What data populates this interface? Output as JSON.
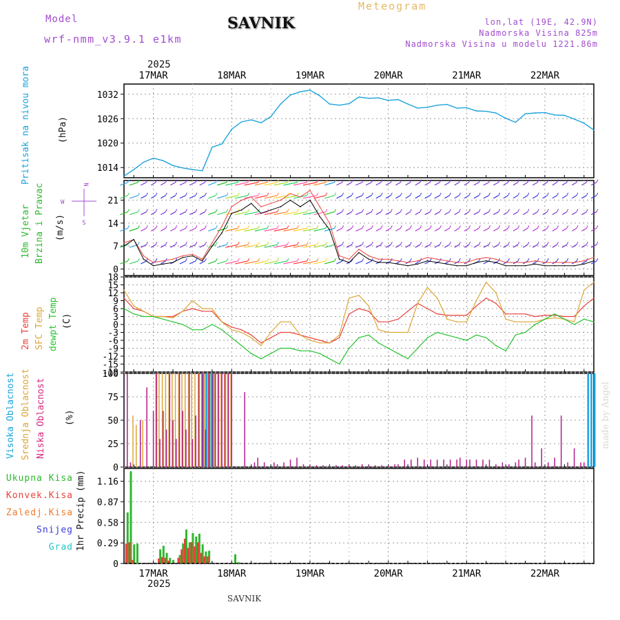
{
  "header": {
    "model_label": "Model",
    "model_name": "wrf-nmm_v3.9.1 e1km",
    "station": "SAVNIK",
    "chart_title": "Meteogram",
    "lonlat": "lon,lat (19E, 42.9N)",
    "elevation": "Nadmorska Visina 825m",
    "model_elevation": "Nadmorska Visina u modelu 1221.86m",
    "year": "2025",
    "footer_station": "SAVNIK",
    "credit": "made by Angel"
  },
  "colors": {
    "pressure": "#1ca3dc",
    "temp2m": "#e8413a",
    "sfc_temp": "#dca535",
    "dewpoint": "#25c12d",
    "high_cloud": "#1ca3dc",
    "mid_cloud": "#dca535",
    "low_cloud": "#b31a8c",
    "total_precip": "#2db82d",
    "conv_precip": "#e8413a",
    "frozen_precip": "#f07a2e",
    "snow": "#3a3ae0",
    "graupel": "#27c4c4",
    "purple_text": "#a24ccf",
    "gold_text": "#e8b765",
    "wind_speed": "#000000",
    "gust": "#e8413a"
  },
  "chart_data": [
    {
      "id": "pressure",
      "type": "line",
      "ylabel_left": "Pritisak na nivou mora",
      "ylabel_right": "(hPa)",
      "yticks": [
        1014,
        1020,
        1026,
        1032
      ],
      "ylim": [
        1011.5,
        1034.5
      ],
      "x_unit": "hours since 2025-03-16 12:00",
      "xlim": [
        3,
        147
      ],
      "x": [
        3,
        6,
        9,
        12,
        15,
        18,
        21,
        24,
        27,
        30,
        33,
        36,
        39,
        42,
        45,
        48,
        51,
        54,
        57,
        60,
        63,
        66,
        69,
        72,
        75,
        78,
        81,
        84,
        87,
        90,
        93,
        96,
        99,
        102,
        105,
        108,
        111,
        114,
        117,
        120,
        123,
        126,
        129,
        132,
        135,
        138,
        141,
        144,
        147
      ],
      "values": [
        1011.9,
        1013.5,
        1015.3,
        1016.3,
        1015.7,
        1014.5,
        1013.9,
        1013.5,
        1013.2,
        1019.0,
        1019.8,
        1023.4,
        1025.2,
        1025.7,
        1025.0,
        1026.5,
        1029.6,
        1031.8,
        1032.6,
        1033.0,
        1031.6,
        1029.6,
        1029.3,
        1029.7,
        1031.3,
        1031.0,
        1031.1,
        1030.5,
        1030.7,
        1029.6,
        1028.6,
        1028.8,
        1029.3,
        1029.5,
        1028.6,
        1028.7,
        1027.9,
        1027.8,
        1027.4,
        1026.1,
        1025.1,
        1027.2,
        1027.4,
        1027.5,
        1026.9,
        1026.8,
        1025.9,
        1024.9,
        1023.2
      ]
    },
    {
      "id": "wind",
      "type": "line",
      "ylabel_left": "10m Vjetar",
      "ylabel_left2": "Brzina i Pravac",
      "ylabel_right": "(m/s)",
      "direction_legend_lines": [
        "N",
        "^",
        "|",
        "W <--|--> E",
        "|",
        "v",
        "S"
      ],
      "yticks": [
        0,
        7,
        14,
        21
      ],
      "ylim": [
        -2,
        27
      ],
      "x_unit": "hours since 2025-03-16 12:00",
      "xlim": [
        3,
        147
      ],
      "x": [
        3,
        6,
        9,
        12,
        15,
        18,
        21,
        24,
        27,
        30,
        33,
        36,
        39,
        42,
        45,
        48,
        51,
        54,
        57,
        60,
        63,
        66,
        69,
        72,
        75,
        78,
        81,
        84,
        87,
        90,
        93,
        96,
        99,
        102,
        105,
        108,
        111,
        114,
        117,
        120,
        123,
        126,
        129,
        132,
        135,
        138,
        141,
        144,
        147
      ],
      "speed": [
        7,
        9,
        3,
        1,
        1.5,
        2,
        3.5,
        4,
        2.5,
        7,
        11,
        17,
        18,
        20,
        17,
        18,
        19,
        21,
        19,
        21,
        16,
        12,
        3,
        2,
        5,
        3,
        2,
        2,
        1.5,
        1,
        1.5,
        2.5,
        2,
        1.5,
        1,
        1,
        2,
        2.5,
        2,
        1,
        1,
        1,
        1.5,
        1,
        1,
        1,
        1,
        1.5,
        2.5
      ],
      "gust": [
        8,
        9,
        4,
        2,
        2.5,
        3,
        4,
        4.5,
        3,
        8,
        13,
        19,
        21,
        22,
        19,
        20,
        21,
        23,
        22,
        24,
        19,
        14,
        4,
        3,
        6,
        4,
        3,
        3,
        2.5,
        2,
        2.5,
        3.5,
        3,
        2.5,
        2,
        2,
        3,
        3.5,
        3,
        2,
        2,
        2,
        2.5,
        2,
        2,
        2,
        2,
        2.5,
        3.5
      ]
    },
    {
      "id": "temperature",
      "type": "line",
      "ylabel_left": "2m Temp",
      "ylabel_left2": "SFC Temp",
      "ylabel_left3": "dewpt Temp",
      "ylabel_right": "(C)",
      "yticks": [
        -18,
        -15,
        -12,
        -9,
        -6,
        -3,
        0,
        3,
        6,
        9,
        12,
        15,
        18
      ],
      "ylim": [
        -18,
        18
      ],
      "x_unit": "hours since 2025-03-16 12:00",
      "xlim": [
        3,
        147
      ],
      "series": [
        {
          "name": "2m Temp",
          "color_key": "temp2m",
          "x": [
            3,
            6,
            9,
            12,
            15,
            18,
            21,
            24,
            27,
            30,
            33,
            36,
            39,
            42,
            45,
            48,
            51,
            54,
            57,
            60,
            63,
            66,
            69,
            72,
            75,
            78,
            81,
            84,
            87,
            90,
            93,
            96,
            99,
            102,
            105,
            108,
            111,
            114,
            117,
            120,
            123,
            126,
            129,
            132,
            135,
            138,
            141,
            144,
            147
          ],
          "values": [
            10,
            6,
            5,
            3,
            3,
            3,
            5,
            6,
            5,
            5,
            1,
            -1,
            -2,
            -4,
            -7,
            -5,
            -3,
            -3,
            -4,
            -5,
            -6,
            -7,
            -5,
            4,
            6,
            5,
            1,
            1,
            2,
            5,
            8,
            6,
            4,
            3.5,
            3.5,
            3.5,
            7,
            10,
            8,
            4,
            4,
            4,
            3,
            3.5,
            3.5,
            3,
            3,
            7,
            10
          ]
        },
        {
          "name": "SFC Temp",
          "color_key": "sfc_temp",
          "x": [
            3,
            6,
            9,
            12,
            15,
            18,
            21,
            24,
            27,
            30,
            33,
            36,
            39,
            42,
            45,
            48,
            51,
            54,
            57,
            60,
            63,
            66,
            69,
            72,
            75,
            78,
            81,
            84,
            87,
            90,
            93,
            96,
            99,
            102,
            105,
            108,
            111,
            114,
            117,
            120,
            123,
            126,
            129,
            132,
            135,
            138,
            141,
            144,
            147
          ],
          "values": [
            13,
            7,
            5,
            3,
            3,
            2.5,
            5,
            9,
            6,
            6,
            1,
            -2,
            -3,
            -5,
            -8,
            -3,
            1,
            1,
            -4,
            -6,
            -7,
            -7,
            -4,
            10,
            11,
            7,
            -2,
            -3,
            -3,
            -3,
            8,
            14,
            10,
            2,
            1,
            1,
            9,
            16,
            12,
            2,
            1,
            1,
            1,
            2,
            2.5,
            2,
            1,
            13,
            16
          ]
        },
        {
          "name": "dewpt Temp",
          "color_key": "dewpoint",
          "x": [
            3,
            6,
            9,
            12,
            15,
            18,
            21,
            24,
            27,
            30,
            33,
            36,
            39,
            42,
            45,
            48,
            51,
            54,
            57,
            60,
            63,
            66,
            69,
            72,
            75,
            78,
            81,
            84,
            87,
            90,
            93,
            96,
            99,
            102,
            105,
            108,
            111,
            114,
            117,
            120,
            123,
            126,
            129,
            132,
            135,
            138,
            141,
            144,
            147
          ],
          "values": [
            6,
            4,
            3,
            3,
            2,
            1,
            0,
            -2,
            -2,
            0,
            -2,
            -5,
            -8,
            -11,
            -13,
            -11,
            -9,
            -9,
            -10,
            -10,
            -11,
            -13,
            -15,
            -9,
            -5,
            -4,
            -7,
            -9,
            -11,
            -13,
            -9,
            -5,
            -3,
            -4,
            -5,
            -6,
            -4,
            -5,
            -8,
            -10,
            -4,
            -3,
            0,
            2,
            4,
            2,
            0,
            2,
            1
          ]
        }
      ]
    },
    {
      "id": "cloud",
      "type": "bar",
      "ylabel_left": "Visoka Oblacnost",
      "ylabel_left2": "Srednja Oblacnost",
      "ylabel_left3": "Niska Oblacnost",
      "ylabel_right": "(%)",
      "yticks": [
        0,
        25,
        50,
        75,
        100
      ],
      "ylim": [
        0,
        100
      ],
      "x_unit": "hours since 2025-03-16 12:00",
      "xlim": [
        3,
        147
      ],
      "series": [
        {
          "name": "Visoka Oblacnost",
          "color_key": "high_cloud",
          "x": [
            27,
            28,
            29,
            30,
            145,
            146,
            147
          ],
          "values": [
            100,
            100,
            100,
            100,
            100,
            100,
            100
          ]
        },
        {
          "name": "Srednja Oblacnost",
          "color_key": "mid_cloud",
          "x": [
            6,
            7,
            9,
            13,
            14,
            15,
            16,
            17,
            18,
            19,
            20,
            21,
            22,
            23,
            24,
            25,
            26,
            27,
            28,
            29,
            30,
            31,
            32,
            33,
            34,
            35,
            36
          ],
          "values": [
            55,
            45,
            50,
            100,
            100,
            100,
            100,
            100,
            100,
            100,
            100,
            100,
            100,
            100,
            100,
            100,
            100,
            100,
            100,
            100,
            100,
            100,
            100,
            100,
            100,
            100,
            100
          ]
        },
        {
          "name": "Niska Oblacnost",
          "color_key": "low_cloud",
          "x": [
            4,
            5,
            8,
            10,
            12,
            13,
            14,
            15,
            16,
            17,
            18,
            19,
            20,
            21,
            22,
            23,
            24,
            25,
            26,
            27,
            28,
            29,
            30,
            31,
            32,
            33,
            34,
            35,
            36,
            40,
            43,
            44,
            46,
            49,
            50,
            52,
            54,
            56,
            58,
            60,
            62,
            64,
            66,
            68,
            70,
            72,
            74,
            76,
            78,
            80,
            82,
            84,
            86,
            87,
            89,
            91,
            93,
            95,
            97,
            99,
            101,
            103,
            105,
            106,
            108,
            109,
            111,
            113,
            115,
            117,
            119,
            121,
            123,
            124,
            126,
            128,
            129,
            131,
            133,
            135,
            137,
            139,
            141,
            143,
            144
          ],
          "values": [
            100,
            5,
            50,
            85,
            60,
            100,
            30,
            60,
            40,
            100,
            50,
            30,
            100,
            60,
            40,
            100,
            30,
            55,
            100,
            100,
            40,
            100,
            100,
            100,
            100,
            100,
            100,
            100,
            100,
            80,
            5,
            10,
            5,
            5,
            3,
            5,
            8,
            10,
            3,
            2,
            2,
            2,
            2,
            2,
            2,
            2,
            2,
            3,
            2,
            2,
            2,
            2,
            3,
            3,
            8,
            8,
            10,
            8,
            8,
            8,
            8,
            8,
            8,
            10,
            8,
            8,
            8,
            8,
            8,
            3,
            5,
            3,
            5,
            8,
            10,
            55,
            5,
            20,
            5,
            10,
            55,
            5,
            20,
            5,
            5
          ]
        }
      ]
    },
    {
      "id": "precip",
      "type": "bar",
      "ylabel_left": "1hr Precip (mm)",
      "yticks": [
        0,
        0.29,
        0.58,
        0.87,
        1.16
      ],
      "ylim": [
        0,
        1.34
      ],
      "legend": [
        "Ukupna Kisa",
        "Konvek.Kisa",
        "Zaledj.Kisa",
        "Snijeg",
        "Grad"
      ],
      "x_unit": "hours since 2025-03-16 12:00",
      "xlim": [
        3,
        147
      ],
      "series": [
        {
          "name": "Ukupna Kisa",
          "color_key": "total_precip",
          "x": [
            4,
            5,
            6,
            7,
            14,
            15,
            16,
            17,
            18,
            20,
            21,
            22,
            23,
            24,
            25,
            26,
            27,
            28,
            29,
            37,
            38
          ],
          "values": [
            0.72,
            1.3,
            0.27,
            0.28,
            0.2,
            0.25,
            0.15,
            0.08,
            0.05,
            0.12,
            0.28,
            0.48,
            0.3,
            0.43,
            0.38,
            0.42,
            0.27,
            0.17,
            0.18,
            0.13,
            0.02
          ]
        },
        {
          "name": "Konvek.Kisa",
          "color_key": "conv_precip",
          "x": [
            4,
            5,
            6,
            14,
            15,
            16,
            17,
            20,
            21,
            22,
            23,
            24,
            25,
            26,
            27,
            28,
            29
          ],
          "values": [
            0.28,
            0.3,
            0.05,
            0.07,
            0.09,
            0.08,
            0.04,
            0.08,
            0.2,
            0.35,
            0.22,
            0.3,
            0.24,
            0.3,
            0.15,
            0.1,
            0.1
          ]
        }
      ]
    }
  ],
  "xaxis": {
    "date_labels": [
      "17MAR",
      "18MAR",
      "19MAR",
      "20MAR",
      "21MAR",
      "22MAR"
    ],
    "date_hours": [
      12,
      36,
      60,
      84,
      108,
      132
    ]
  }
}
